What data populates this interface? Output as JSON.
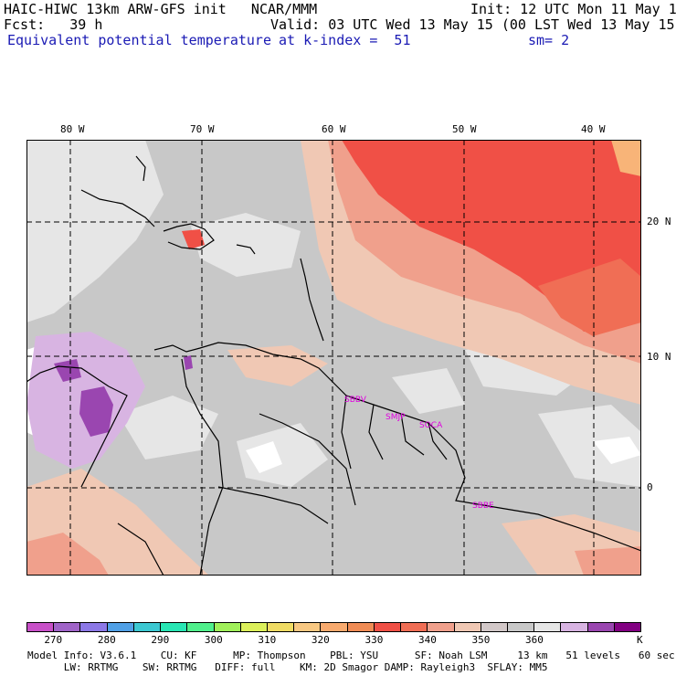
{
  "header": {
    "line1_left": "HAIC-HIWC 13km ARW-GFS init   NCAR/MMM",
    "line1_right": "Init: 12 UTC Mon 11 May 15",
    "line2_left": "Fcst:   39 h",
    "line2_right": "Valid: 03 UTC Wed 13 May 15 (00 LST Wed 13 May 15)",
    "line3_left": "Equivalent potential temperature",
    "line3_mid": "at k-index =  51",
    "line3_right": "sm= 2"
  },
  "map": {
    "lon_labels": [
      "80 W",
      "70 W",
      "60 W",
      "50 W",
      "40 W"
    ],
    "lat_labels": [
      "20 N",
      "10 N",
      "0"
    ],
    "stations": [
      "SBBV",
      "SMJP",
      "SOCA",
      "SBBE"
    ],
    "colors": {
      "background_gray": "#c8c8c8",
      "light_gray": "#e6e6e6",
      "peach": "#f0c8b4",
      "salmon": "#f0a08c",
      "red": "#f05046",
      "red_orange": "#f06e55",
      "orange": "#f8b478",
      "light_purple": "#d8b4e2",
      "purple": "#9a46b0",
      "white": "#ffffff"
    }
  },
  "colorbar": {
    "colors": [
      "#c850c8",
      "#a064c8",
      "#8c78e6",
      "#50a0e6",
      "#3cc8d2",
      "#28e6b4",
      "#50f08c",
      "#a0f05a",
      "#dcf05a",
      "#f0dc64",
      "#f8c882",
      "#f8aa6e",
      "#f08c55",
      "#f05046",
      "#f06e55",
      "#f0a08c",
      "#f0c8b4",
      "#d2c8c8",
      "#c8c8c8",
      "#e6e6e6",
      "#d8b4e2",
      "#9a46b0",
      "#820082"
    ],
    "ticks": [
      "270",
      "280",
      "290",
      "300",
      "310",
      "320",
      "330",
      "340",
      "350",
      "360"
    ],
    "unit": "K"
  },
  "footer": {
    "line1": "Model Info: V3.6.1    CU: KF      MP: Thompson    PBL: YSU      SF: Noah LSM     13 km   51 levels   60 sec",
    "line2": "      LW: RRTMG    SW: RRTMG   DIFF: full    KM: 2D Smagor DAMP: Rayleigh3  SFLAY: MM5"
  }
}
